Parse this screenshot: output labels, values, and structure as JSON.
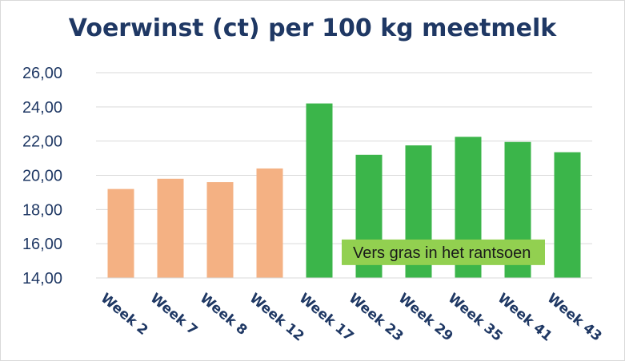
{
  "chart_data": {
    "type": "bar",
    "title": "Voerwinst (ct) per 100 kg meetmelk",
    "xlabel": "",
    "ylabel": "",
    "ylim": [
      14,
      26
    ],
    "yticks": [
      "14,00",
      "16,00",
      "18,00",
      "20,00",
      "22,00",
      "24,00",
      "26,00"
    ],
    "grid": true,
    "legend": "none",
    "categories": [
      "Week 2",
      "Week 7",
      "Week 8",
      "Week 12",
      "Week 17",
      "Week 23",
      "Week 29",
      "Week 35",
      "Week 41",
      "Week 43"
    ],
    "values": [
      19.2,
      19.8,
      19.6,
      20.4,
      24.2,
      21.2,
      21.75,
      22.25,
      21.95,
      21.35
    ],
    "bar_colors": [
      "#f4b183",
      "#f4b183",
      "#f4b183",
      "#f4b183",
      "#3bb54a",
      "#3bb54a",
      "#3bb54a",
      "#3bb54a",
      "#3bb54a",
      "#3bb54a"
    ],
    "annotation": {
      "text": "Vers gras in het rantsoen",
      "from_category": 4,
      "to_category": 9,
      "y": 15.5,
      "color": "#92d050"
    }
  }
}
